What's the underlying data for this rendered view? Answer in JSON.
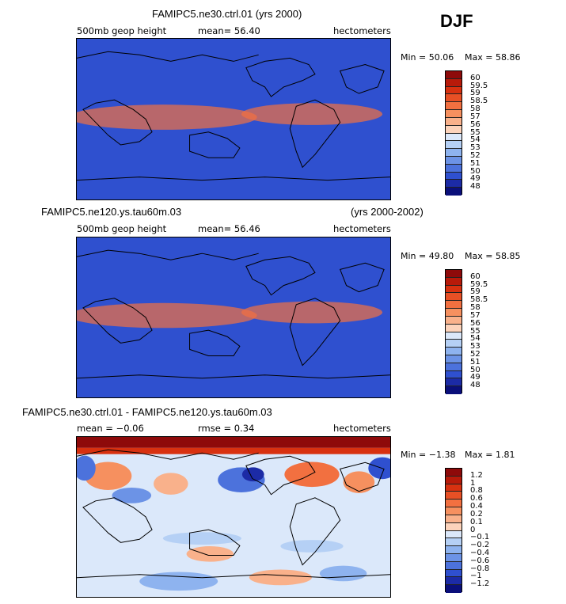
{
  "season": "DJF",
  "panels": [
    {
      "title": "FAMIPC5.ne30.ctrl.01 (yrs 2000)",
      "title_right": "",
      "left_label": "500mb geop height",
      "center_label": "mean=  56.40",
      "units": "hectometers",
      "min_text": "Min =  50.06",
      "max_text": "Max =  58.86",
      "colorbar_labels": [
        "60",
        "59.5",
        "59",
        "58.5",
        "58",
        "57",
        "56",
        "55",
        "54",
        "53",
        "52",
        "51",
        "50",
        "49",
        "48"
      ]
    },
    {
      "title": "FAMIPC5.ne120.ys.tau60m.03",
      "title_right": "(yrs 2000-2002)",
      "left_label": "500mb geop height",
      "center_label": "mean=  56.46",
      "units": "hectometers",
      "min_text": "Min =  49.80",
      "max_text": "Max =  58.85",
      "colorbar_labels": [
        "60",
        "59.5",
        "59",
        "58.5",
        "58",
        "57",
        "56",
        "55",
        "54",
        "53",
        "52",
        "51",
        "50",
        "49",
        "48"
      ]
    },
    {
      "title": "FAMIPC5.ne30.ctrl.01 - FAMIPC5.ne120.ys.tau60m.03",
      "title_right": "",
      "left_label": "mean =  −0.06",
      "center_label": "rmse =   0.34",
      "units": "hectometers",
      "min_text": "Min =  −1.38",
      "max_text": "Max =   1.81",
      "colorbar_labels": [
        "1.2",
        "1",
        "0.8",
        "0.6",
        "0.4",
        "0.2",
        "0.1",
        "0",
        "−0.1",
        "−0.2",
        "−0.4",
        "−0.6",
        "−0.8",
        "−1",
        "−1.2"
      ]
    }
  ],
  "colors": {
    "ramp": [
      "#8e0a0a",
      "#b81a0a",
      "#d83110",
      "#e85025",
      "#f27040",
      "#f6905f",
      "#f9b18b",
      "#fcd3bb",
      "#fdf2ea",
      "#dbe8fa",
      "#b5d0f5",
      "#8eb3ef",
      "#6c93e6",
      "#4c72dc",
      "#2f50cf",
      "#1c2ba6",
      "#0a0f7a"
    ]
  }
}
